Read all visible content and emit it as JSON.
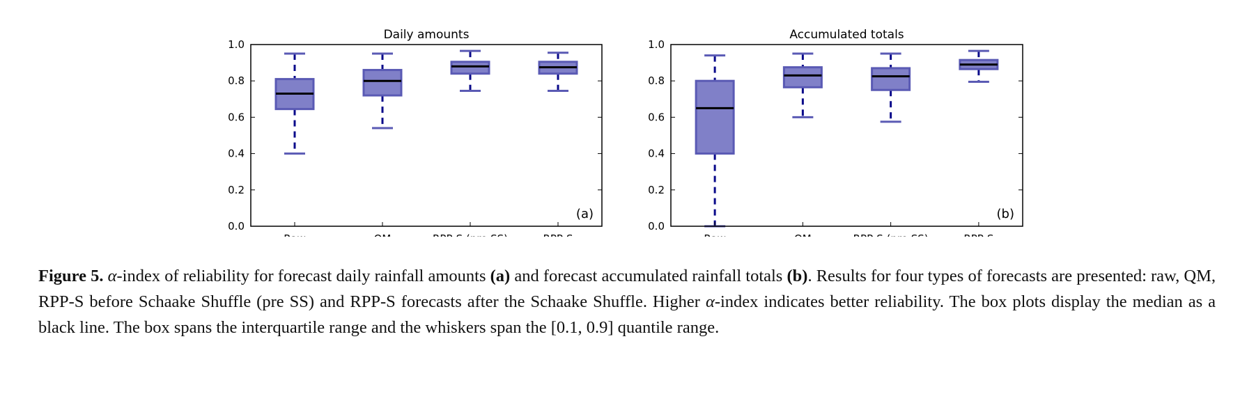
{
  "chart_data": [
    {
      "type": "box",
      "title": "Daily amounts",
      "panel_label": "(a)",
      "categories": [
        "Raw",
        "QM",
        "RPP-S (pre SS)",
        "RPP-S"
      ],
      "ylim": [
        0.0,
        1.0
      ],
      "yticks": [
        "0.0",
        "0.2",
        "0.4",
        "0.6",
        "0.8",
        "1.0"
      ],
      "boxes": [
        {
          "whisker_low": 0.4,
          "q1": 0.645,
          "median": 0.73,
          "q3": 0.81,
          "whisker_high": 0.95
        },
        {
          "whisker_low": 0.54,
          "q1": 0.72,
          "median": 0.8,
          "q3": 0.86,
          "whisker_high": 0.95
        },
        {
          "whisker_low": 0.745,
          "q1": 0.84,
          "median": 0.88,
          "q3": 0.905,
          "whisker_high": 0.965
        },
        {
          "whisker_low": 0.745,
          "q1": 0.84,
          "median": 0.875,
          "q3": 0.905,
          "whisker_high": 0.955
        }
      ],
      "box_color": "#8080c8",
      "box_edge": "#5a5ab4",
      "whisker_color": "#0a0a8a",
      "median_color": "#000000",
      "grid": false
    },
    {
      "type": "box",
      "title": "Accumulated totals",
      "panel_label": "(b)",
      "categories": [
        "Raw",
        "QM",
        "RPP-S (pre SS)",
        "RPP-S"
      ],
      "ylim": [
        0.0,
        1.0
      ],
      "yticks": [
        "0.0",
        "0.2",
        "0.4",
        "0.6",
        "0.8",
        "1.0"
      ],
      "boxes": [
        {
          "whisker_low": 0.0,
          "q1": 0.4,
          "median": 0.65,
          "q3": 0.8,
          "whisker_high": 0.94
        },
        {
          "whisker_low": 0.6,
          "q1": 0.765,
          "median": 0.83,
          "q3": 0.875,
          "whisker_high": 0.95
        },
        {
          "whisker_low": 0.575,
          "q1": 0.75,
          "median": 0.825,
          "q3": 0.87,
          "whisker_high": 0.95
        },
        {
          "whisker_low": 0.795,
          "q1": 0.865,
          "median": 0.89,
          "q3": 0.915,
          "whisker_high": 0.965
        }
      ],
      "box_color": "#8080c8",
      "box_edge": "#5a5ab4",
      "whisker_color": "#0a0a8a",
      "median_color": "#000000",
      "grid": false
    }
  ],
  "caption": {
    "label": "Figure 5.",
    "alpha": "α",
    "t1": "-index of reliability for forecast daily rainfall amounts ",
    "a": "(a)",
    "t2": " and forecast accumulated rainfall totals ",
    "b": "(b)",
    "t3": ". Results for four types of forecasts are presented: raw, QM, RPP-S before Schaake Shuffle (pre SS) and RPP-S forecasts after the Schaake Shuffle. Higher ",
    "alpha2": "α",
    "t4": "-index indicates better reliability. The box plots display the median as a black line. The box spans the interquartile range and the whiskers span the [0.1, 0.9] quantile range."
  }
}
